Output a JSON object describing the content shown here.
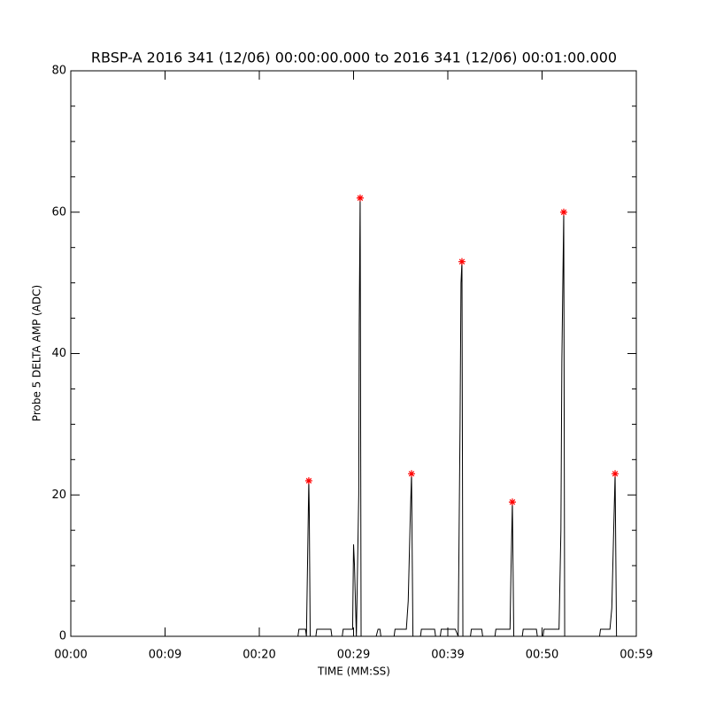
{
  "chart_data": {
    "type": "line",
    "title": "RBSP-A 2016 341 (12/06) 00:00:00.000 to 2016 341 (12/06) 00:01:00.000",
    "xlabel": "TIME (MM:SS)",
    "ylabel": "Probe 5 DELTA AMP (ADC)",
    "xlim": [
      0,
      60
    ],
    "ylim": [
      0,
      80
    ],
    "xticks": [
      {
        "value": 0,
        "label": "00:00"
      },
      {
        "value": 10,
        "label": "00:09"
      },
      {
        "value": 20,
        "label": "00:20"
      },
      {
        "value": 30,
        "label": "00:29"
      },
      {
        "value": 40,
        "label": "00:39"
      },
      {
        "value": 50,
        "label": "00:50"
      },
      {
        "value": 60,
        "label": "00:59"
      }
    ],
    "yticks": [
      0,
      20,
      40,
      60,
      80
    ],
    "y_minor": 4,
    "series": [
      {
        "color": "#000000",
        "x": [
          0,
          24.1,
          24.2,
          24.9,
          25.0,
          25.25,
          25.3,
          25.4,
          26.0,
          26.1,
          27.6,
          27.7,
          28.8,
          28.9,
          29.9,
          30.0,
          30.1,
          30.3,
          30.55,
          30.6,
          30.7,
          30.8,
          32.4,
          32.6,
          32.8,
          32.9,
          34.3,
          34.4,
          35.6,
          35.8,
          36.0,
          36.15,
          36.3,
          37.1,
          37.2,
          38.6,
          38.7,
          39.2,
          39.3,
          40.8,
          41.1,
          41.3,
          41.4,
          41.5,
          41.6,
          42.4,
          42.5,
          43.6,
          43.7,
          45.0,
          45.1,
          46.6,
          46.7,
          46.85,
          47.0,
          47.9,
          48.0,
          49.4,
          49.5,
          50.1,
          50.2,
          51.8,
          52.0,
          52.1,
          52.3,
          52.4,
          56.1,
          56.2,
          57.2,
          57.4,
          57.6,
          57.75,
          57.9,
          60
        ],
        "values": [
          0,
          0,
          1,
          1,
          0,
          22,
          18,
          0,
          0,
          1,
          1,
          0,
          0,
          1,
          1,
          13,
          10,
          0,
          20,
          44,
          62,
          0,
          0,
          1,
          1,
          0,
          0,
          1,
          1,
          5,
          16,
          23,
          0,
          0,
          1,
          1,
          0,
          0,
          1,
          1,
          0,
          30,
          50,
          53,
          0,
          0,
          1,
          1,
          0,
          0,
          1,
          1,
          9,
          19,
          0,
          0,
          1,
          1,
          0,
          0,
          1,
          1,
          15,
          39,
          60,
          0,
          0,
          1,
          1,
          4,
          15,
          23,
          0,
          0
        ]
      },
      {
        "color": "#ff0000",
        "marker": "*",
        "x": [
          25.25,
          30.7,
          36.15,
          41.5,
          46.85,
          52.3,
          57.75
        ],
        "values": [
          22,
          62,
          23,
          53,
          19,
          60,
          23
        ]
      }
    ]
  }
}
